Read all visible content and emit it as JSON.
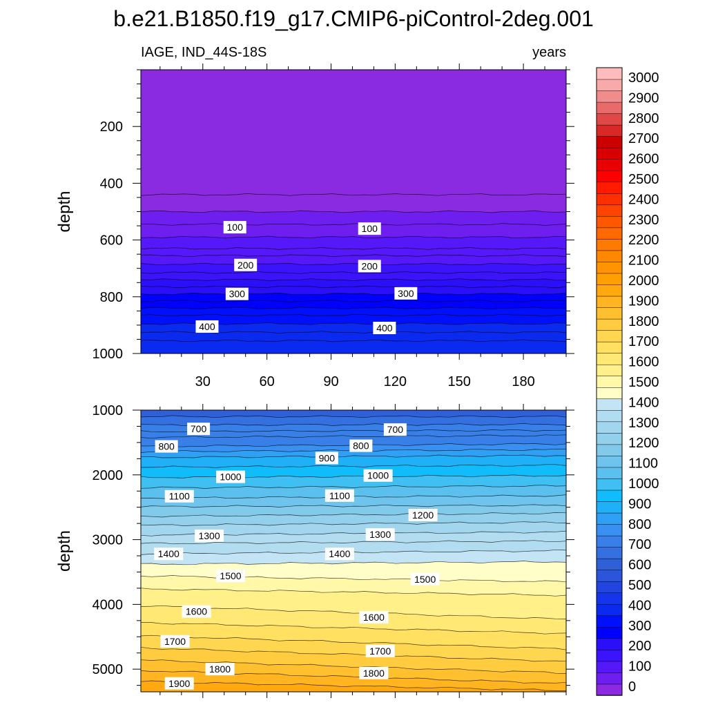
{
  "title": "b.e21.B1850.f19_g17.CMIP6-piControl-2deg.001",
  "left_label": "IAGE, IND_44S-18S",
  "right_label": "years",
  "chart_data": [
    {
      "type": "contour",
      "panel": "top",
      "ylabel": "depth",
      "xlim": [
        1,
        200
      ],
      "ylim": [
        1000,
        0
      ],
      "xticks": [
        30,
        60,
        90,
        120,
        150,
        180
      ],
      "yticks": [
        200,
        400,
        600,
        800,
        1000
      ],
      "contour_depths": [
        {
          "value": 25,
          "depth": 440
        },
        {
          "value": 50,
          "depth": 500
        },
        {
          "value": 75,
          "depth": 545
        },
        {
          "value": 100,
          "depth": 590
        },
        {
          "value": 125,
          "depth": 630
        },
        {
          "value": 150,
          "depth": 655
        },
        {
          "value": 175,
          "depth": 685
        },
        {
          "value": 200,
          "depth": 715
        },
        {
          "value": 225,
          "depth": 740
        },
        {
          "value": 250,
          "depth": 765
        },
        {
          "value": 275,
          "depth": 790
        },
        {
          "value": 300,
          "depth": 815
        },
        {
          "value": 325,
          "depth": 840
        },
        {
          "value": 350,
          "depth": 865
        },
        {
          "value": 375,
          "depth": 895
        },
        {
          "value": 400,
          "depth": 925
        },
        {
          "value": 425,
          "depth": 955
        }
      ],
      "labels": [
        {
          "text": "100",
          "x": 45,
          "depth": 555
        },
        {
          "text": "100",
          "x": 108,
          "depth": 560
        },
        {
          "text": "200",
          "x": 50,
          "depth": 688
        },
        {
          "text": "200",
          "x": 108,
          "depth": 692
        },
        {
          "text": "300",
          "x": 46,
          "depth": 790
        },
        {
          "text": "300",
          "x": 125,
          "depth": 788
        },
        {
          "text": "400",
          "x": 32,
          "depth": 905
        },
        {
          "text": "400",
          "x": 115,
          "depth": 910
        }
      ]
    },
    {
      "type": "contour",
      "panel": "bottom",
      "ylabel": "depth",
      "xlim": [
        1,
        200
      ],
      "ylim": [
        5350,
        1000
      ],
      "yticks": [
        1000,
        2000,
        3000,
        4000,
        5000
      ],
      "contour_depths": [
        {
          "value": 675,
          "d0": 1100,
          "d1": 1100
        },
        {
          "value": 700,
          "d0": 1230,
          "d1": 1220
        },
        {
          "value": 725,
          "d0": 1330,
          "d1": 1310
        },
        {
          "value": 750,
          "d0": 1420,
          "d1": 1390
        },
        {
          "value": 800,
          "d0": 1560,
          "d1": 1520
        },
        {
          "value": 850,
          "d0": 1640,
          "d1": 1610
        },
        {
          "value": 900,
          "d0": 1730,
          "d1": 1700
        },
        {
          "value": 950,
          "d0": 1880,
          "d1": 1850
        },
        {
          "value": 1000,
          "d0": 2040,
          "d1": 2010
        },
        {
          "value": 1050,
          "d0": 2200,
          "d1": 2170
        },
        {
          "value": 1100,
          "d0": 2360,
          "d1": 2320
        },
        {
          "value": 1150,
          "d0": 2490,
          "d1": 2470
        },
        {
          "value": 1200,
          "d0": 2640,
          "d1": 2590
        },
        {
          "value": 1250,
          "d0": 2780,
          "d1": 2730
        },
        {
          "value": 1300,
          "d0": 2930,
          "d1": 2880
        },
        {
          "value": 1350,
          "d0": 3060,
          "d1": 3020
        },
        {
          "value": 1400,
          "d0": 3220,
          "d1": 3170
        },
        {
          "value": 1450,
          "d0": 3380,
          "d1": 3340
        },
        {
          "value": 1500,
          "d0": 3560,
          "d1": 3650
        },
        {
          "value": 1550,
          "d0": 3760,
          "d1": 3860
        },
        {
          "value": 1600,
          "d0": 4020,
          "d1": 4230
        },
        {
          "value": 1650,
          "d0": 4280,
          "d1": 4450
        },
        {
          "value": 1700,
          "d0": 4480,
          "d1": 4690
        },
        {
          "value": 1750,
          "d0": 4670,
          "d1": 4880
        },
        {
          "value": 1800,
          "d0": 4860,
          "d1": 5060
        },
        {
          "value": 1850,
          "d0": 5020,
          "d1": 5220
        },
        {
          "value": 1900,
          "d0": 5190,
          "d1": 5330
        }
      ],
      "labels": [
        {
          "text": "700",
          "x": 28,
          "depth": 1290
        },
        {
          "text": "700",
          "x": 120,
          "depth": 1300
        },
        {
          "text": "800",
          "x": 13,
          "depth": 1560
        },
        {
          "text": "800",
          "x": 104,
          "depth": 1550
        },
        {
          "text": "900",
          "x": 88,
          "depth": 1740
        },
        {
          "text": "1000",
          "x": 43,
          "depth": 2030
        },
        {
          "text": "1000",
          "x": 112,
          "depth": 2010
        },
        {
          "text": "1100",
          "x": 19,
          "depth": 2330
        },
        {
          "text": "1100",
          "x": 94,
          "depth": 2320
        },
        {
          "text": "1200",
          "x": 133,
          "depth": 2620
        },
        {
          "text": "1300",
          "x": 33,
          "depth": 2940
        },
        {
          "text": "1300",
          "x": 113,
          "depth": 2920
        },
        {
          "text": "1400",
          "x": 14,
          "depth": 3220
        },
        {
          "text": "1400",
          "x": 94,
          "depth": 3220
        },
        {
          "text": "1500",
          "x": 43,
          "depth": 3560
        },
        {
          "text": "1500",
          "x": 134,
          "depth": 3610
        },
        {
          "text": "1600",
          "x": 27,
          "depth": 4110
        },
        {
          "text": "1600",
          "x": 110,
          "depth": 4200
        },
        {
          "text": "1700",
          "x": 17,
          "depth": 4570
        },
        {
          "text": "1700",
          "x": 113,
          "depth": 4720
        },
        {
          "text": "1800",
          "x": 38,
          "depth": 5000
        },
        {
          "text": "1800",
          "x": 110,
          "depth": 5060
        },
        {
          "text": "1900",
          "x": 19,
          "depth": 5220
        }
      ]
    }
  ],
  "colorbar": {
    "labels": [
      "0",
      "100",
      "200",
      "300",
      "400",
      "500",
      "600",
      "700",
      "800",
      "900",
      "1000",
      "1100",
      "1200",
      "1300",
      "1400",
      "1500",
      "1600",
      "1700",
      "1800",
      "1900",
      "2000",
      "2100",
      "2200",
      "2300",
      "2400",
      "2500",
      "2600",
      "2700",
      "2800",
      "2900",
      "3000"
    ],
    "colors": [
      "#8a2be2",
      "#6f1ef0",
      "#5518f8",
      "#3c14fc",
      "#2a0ff8",
      "#0000ff",
      "#0010fa",
      "#0a2af0",
      "#1535ec",
      "#2244e0",
      "#2d55dc",
      "#3060d8",
      "#3470e0",
      "#3880e8",
      "#3a90f0",
      "#30a0f4",
      "#20b0f8",
      "#10bcfa",
      "#40c0f2",
      "#5cc0ee",
      "#6ec4ec",
      "#82cae9",
      "#92d0eb",
      "#a2d6ee",
      "#b2dcf0",
      "#c2e4f4",
      "#fffec8",
      "#fff8a8",
      "#fff08a",
      "#ffe874",
      "#ffe060",
      "#ffd650",
      "#ffcc40",
      "#ffc030",
      "#ffb420",
      "#ffa810",
      "#ffa000",
      "#ff9400",
      "#ff8800",
      "#ff7a00",
      "#ff6a00",
      "#ff5800",
      "#ff4400",
      "#ff3000",
      "#ff1a00",
      "#ff0000",
      "#ea0000",
      "#d80000",
      "#cc0000",
      "#d82828",
      "#e04848",
      "#e86a6a",
      "#f08c8c",
      "#f8aaaa",
      "#ffbcbc"
    ]
  }
}
